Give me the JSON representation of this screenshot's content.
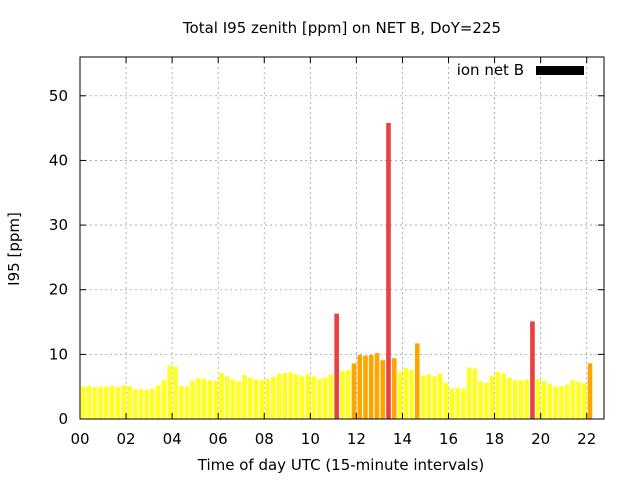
{
  "chart_data": {
    "type": "bar",
    "title": "Total I95 zenith [ppm] on NET B, DoY=225",
    "xlabel": "Time of day UTC (15-minute intervals)",
    "ylabel": "I95 [ppm]",
    "xlim": [
      0,
      22.75
    ],
    "ylim": [
      0,
      56
    ],
    "x_ticks": [
      "00",
      "02",
      "04",
      "06",
      "08",
      "10",
      "12",
      "14",
      "16",
      "18",
      "20",
      "22"
    ],
    "x_tick_values": [
      0,
      2,
      4,
      6,
      8,
      10,
      12,
      14,
      16,
      18,
      20,
      22
    ],
    "y_ticks": [
      "0",
      "10",
      "20",
      "30",
      "40",
      "50"
    ],
    "y_tick_values": [
      0,
      10,
      20,
      30,
      40,
      50
    ],
    "grid": true,
    "legend_position": "top-right",
    "series": [
      {
        "name": "ion net B",
        "legend_color": "#000000",
        "x_start": 0,
        "x_step": 0.25,
        "values": [
          5.0,
          5.1,
          4.9,
          5.0,
          5.0,
          5.1,
          4.9,
          5.2,
          5.1,
          4.6,
          4.6,
          4.5,
          4.7,
          5.2,
          6.0,
          8.3,
          8.1,
          5.1,
          5.0,
          5.9,
          6.3,
          6.2,
          6.0,
          5.9,
          7.1,
          6.6,
          6.1,
          5.8,
          6.8,
          6.4,
          6.1,
          6.0,
          6.2,
          6.5,
          7.0,
          7.1,
          7.2,
          6.9,
          6.6,
          6.9,
          6.6,
          6.2,
          6.4,
          6.9,
          16.3,
          7.4,
          7.6,
          8.6,
          9.9,
          9.8,
          9.9,
          10.2,
          9.1,
          45.8,
          9.4,
          7.3,
          7.9,
          7.6,
          11.7,
          6.7,
          6.9,
          6.6,
          7.0,
          5.6,
          4.7,
          4.8,
          4.7,
          8.0,
          7.8,
          5.8,
          5.6,
          6.7,
          7.3,
          7.0,
          6.4,
          6.0,
          6.0,
          6.1,
          15.1,
          6.2,
          5.9,
          5.5,
          5.0,
          5.1,
          5.3,
          6.0,
          5.8,
          5.5,
          8.6
        ],
        "colors": {
          "low": "#ffff20",
          "mid": "#ffa500",
          "high": "#e8413f"
        },
        "thresholds": {
          "mid": 8.5,
          "high": 14
        }
      }
    ]
  }
}
